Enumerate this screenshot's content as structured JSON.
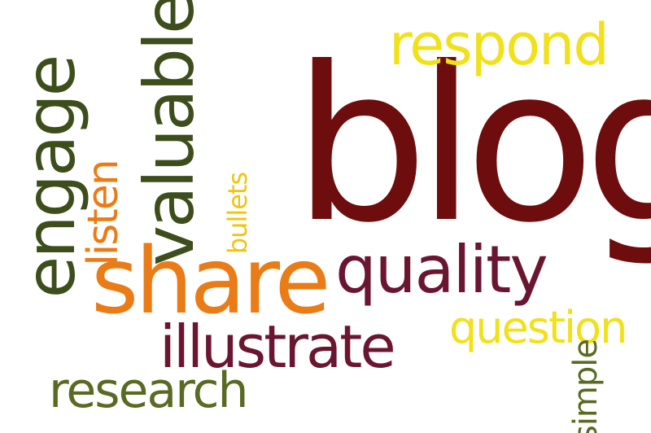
{
  "words": {
    "blog": {
      "text": "blog",
      "color": "#6e0d0d"
    },
    "respond": {
      "text": "respond",
      "color": "#f1e11a"
    },
    "engage": {
      "text": "engage",
      "color": "#3d4d1b"
    },
    "valuable": {
      "text": "valuable",
      "color": "#3d4d1b"
    },
    "listen": {
      "text": "listen",
      "color": "#ea7c18"
    },
    "bullets": {
      "text": "bullets",
      "color": "#f1c40f"
    },
    "share": {
      "text": "share",
      "color": "#ea7c18"
    },
    "quality": {
      "text": "quality",
      "color": "#6b1630"
    },
    "illustrate": {
      "text": "illustrate",
      "color": "#6b1630"
    },
    "question": {
      "text": "question",
      "color": "#f1e11a"
    },
    "research": {
      "text": "research",
      "color": "#5a6a22"
    },
    "simple": {
      "text": "simple",
      "color": "#5a6a22"
    }
  }
}
